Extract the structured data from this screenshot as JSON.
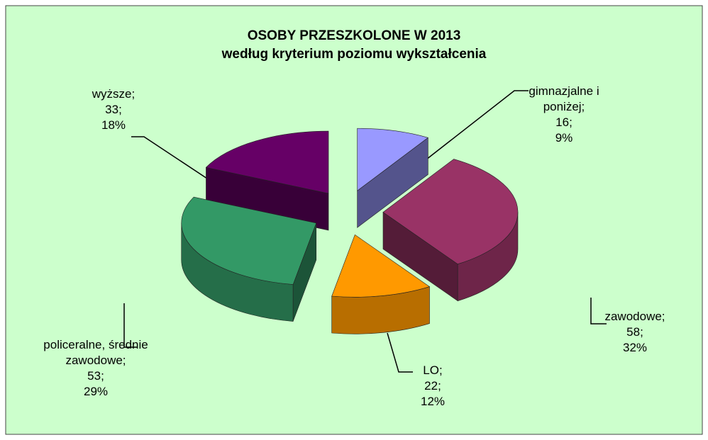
{
  "chart_data": {
    "type": "pie3d",
    "title": "OSOBY PRZESZKOLONE W 2013",
    "subtitle": "według kryterium poziomu wykształcenia",
    "categories": [
      "gimnazjalne i poniżej;",
      "zawodowe;",
      "LO;",
      "policeralne, średnie zawodowe;",
      "wyższe;"
    ],
    "values": [
      16,
      58,
      22,
      53,
      33
    ],
    "value_labels": [
      "16;",
      "58;",
      "22;",
      "53;",
      "33;"
    ],
    "percent_labels": [
      "9%",
      "32%",
      "12%",
      "29%",
      "18%"
    ],
    "colors": [
      "#9999ff",
      "#993366",
      "#ff9900",
      "#339966",
      "#660066"
    ]
  }
}
